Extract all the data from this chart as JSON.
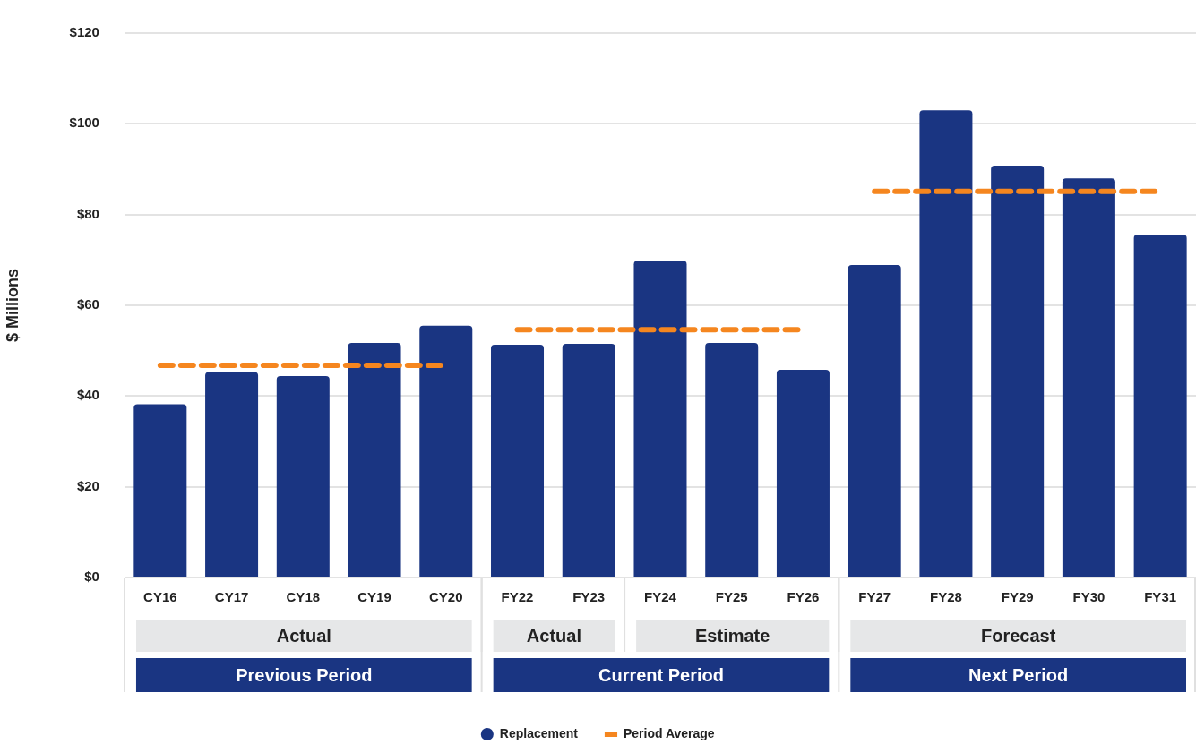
{
  "chart_data": {
    "type": "bar",
    "ylabel": "$ Millions",
    "categories": [
      "CY16",
      "CY17",
      "CY18",
      "CY19",
      "CY20",
      "FY22",
      "FY23",
      "FY24",
      "FY25",
      "FY26",
      "FY27",
      "FY28",
      "FY29",
      "FY30",
      "FY31"
    ],
    "series": [
      {
        "name": "Replacement",
        "color": "#1a3582",
        "values": [
          38.2,
          45.3,
          44.4,
          51.7,
          55.5,
          51.3,
          51.5,
          69.8,
          51.7,
          45.8,
          68.9,
          103.0,
          90.8,
          88.0,
          75.6
        ]
      },
      {
        "name": "Period Average",
        "type": "line",
        "color": "#f5861f",
        "line_style": "dashed",
        "values": [
          46.8,
          46.8,
          46.8,
          46.8,
          46.8,
          54.6,
          54.6,
          54.6,
          54.6,
          54.6,
          85.1,
          85.1,
          85.1,
          85.1,
          85.1
        ]
      }
    ],
    "annotations": [
      "Actual",
      "Actual",
      "Estimate",
      "Forecast",
      "Previous Period",
      "Current Period",
      "Next Period"
    ],
    "ylim": [
      0,
      120
    ],
    "yticks": [
      {
        "value": 0,
        "label": "$0"
      },
      {
        "value": 20,
        "label": "$20"
      },
      {
        "value": 40,
        "label": "$40"
      },
      {
        "value": 60,
        "label": "$60"
      },
      {
        "value": 80,
        "label": "$80"
      },
      {
        "value": 100,
        "label": "$100"
      },
      {
        "value": 120,
        "label": "$120"
      }
    ],
    "grid": "y",
    "legend": "bottom",
    "marker": "none"
  }
}
